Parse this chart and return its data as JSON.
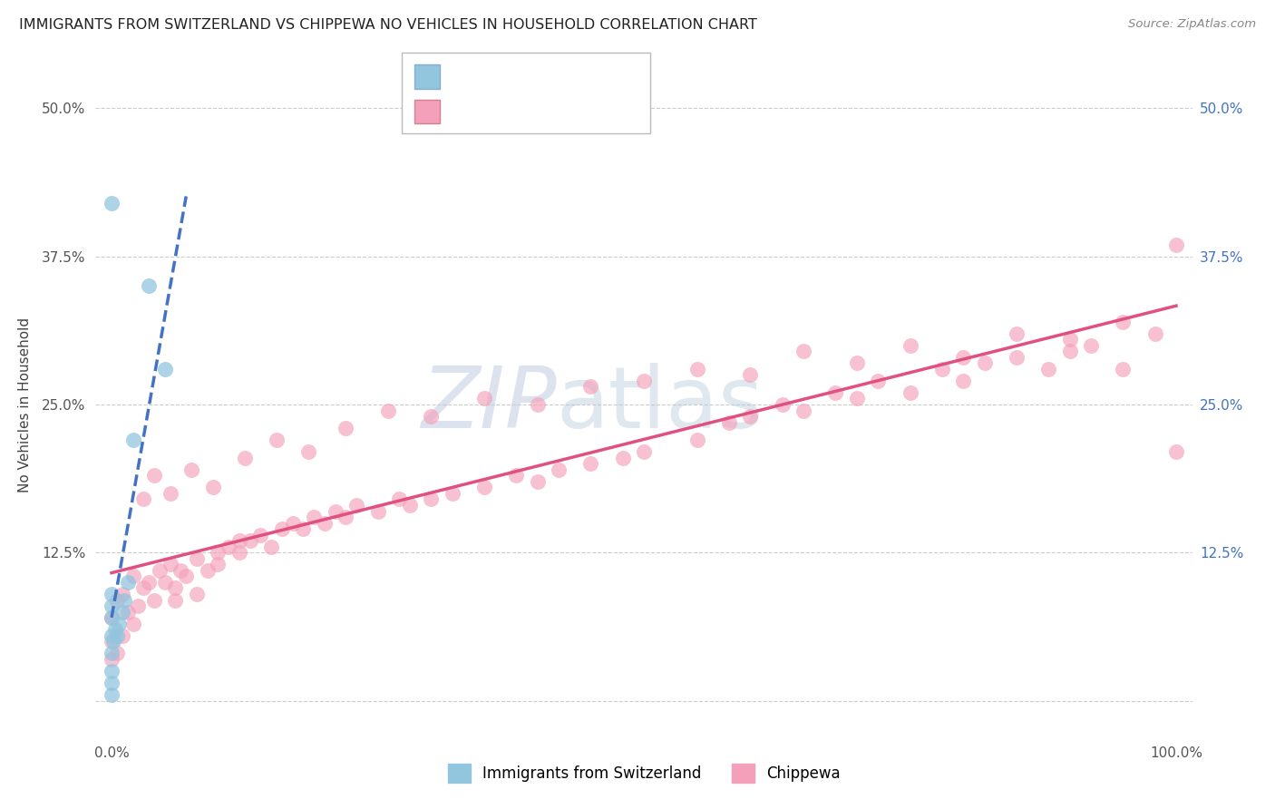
{
  "title": "IMMIGRANTS FROM SWITZERLAND VS CHIPPEWA NO VEHICLES IN HOUSEHOLD CORRELATION CHART",
  "source": "Source: ZipAtlas.com",
  "ylabel": "No Vehicles in Household",
  "watermark_zip": "ZIP",
  "watermark_atlas": "atlas",
  "color_blue": "#92C5DE",
  "color_pink": "#F4A0BA",
  "color_blue_line": "#4472C4",
  "color_pink_line": "#E05080",
  "color_blue_text": "#4472C4",
  "color_grid": "#cccccc",
  "xlim": [
    -1.5,
    101.5
  ],
  "ylim": [
    -3.0,
    53.0
  ],
  "ytick_vals": [
    0.0,
    12.5,
    25.0,
    37.5,
    50.0
  ],
  "s1_x": [
    0.0,
    0.0,
    0.0,
    0.0,
    0.0,
    0.0,
    0.0,
    0.0,
    0.2,
    0.3,
    0.5,
    0.7,
    1.0,
    1.2,
    1.5,
    2.0,
    3.5,
    5.0,
    0.0
  ],
  "s1_y": [
    0.5,
    1.5,
    2.5,
    4.0,
    5.5,
    7.0,
    8.0,
    9.0,
    5.0,
    6.0,
    5.5,
    6.5,
    7.5,
    8.5,
    10.0,
    22.0,
    35.0,
    28.0,
    42.0
  ],
  "s2_x": [
    0.0,
    0.0,
    0.0,
    0.5,
    0.5,
    1.0,
    1.0,
    1.5,
    2.0,
    2.0,
    2.5,
    3.0,
    3.5,
    4.0,
    4.5,
    5.0,
    5.5,
    6.0,
    6.5,
    7.0,
    8.0,
    9.0,
    10.0,
    11.0,
    12.0,
    13.0,
    14.0,
    15.0,
    16.0,
    17.0,
    18.0,
    19.0,
    20.0,
    21.0,
    22.0,
    23.0,
    25.0,
    27.0,
    28.0,
    30.0,
    32.0,
    35.0,
    38.0,
    40.0,
    42.0,
    45.0,
    48.0,
    50.0,
    55.0,
    58.0,
    60.0,
    63.0,
    65.0,
    68.0,
    70.0,
    72.0,
    75.0,
    78.0,
    80.0,
    82.0,
    85.0,
    88.0,
    90.0,
    92.0,
    95.0,
    98.0,
    100.0,
    3.0,
    4.0,
    5.5,
    7.5,
    9.5,
    12.5,
    15.5,
    18.5,
    22.0,
    26.0,
    30.0,
    35.0,
    40.0,
    45.0,
    50.0,
    55.0,
    60.0,
    65.0,
    70.0,
    75.0,
    80.0,
    85.0,
    90.0,
    95.0,
    100.0,
    6.0,
    8.0,
    10.0,
    12.0
  ],
  "s2_y": [
    3.5,
    5.0,
    7.0,
    4.0,
    8.5,
    5.5,
    9.0,
    7.5,
    6.5,
    10.5,
    8.0,
    9.5,
    10.0,
    8.5,
    11.0,
    10.0,
    11.5,
    9.5,
    11.0,
    10.5,
    12.0,
    11.0,
    12.5,
    13.0,
    12.5,
    13.5,
    14.0,
    13.0,
    14.5,
    15.0,
    14.5,
    15.5,
    15.0,
    16.0,
    15.5,
    16.5,
    16.0,
    17.0,
    16.5,
    17.0,
    17.5,
    18.0,
    19.0,
    18.5,
    19.5,
    20.0,
    20.5,
    21.0,
    22.0,
    23.5,
    24.0,
    25.0,
    24.5,
    26.0,
    25.5,
    27.0,
    26.0,
    28.0,
    27.0,
    28.5,
    29.0,
    28.0,
    29.5,
    30.0,
    28.0,
    31.0,
    21.0,
    17.0,
    19.0,
    17.5,
    19.5,
    18.0,
    20.5,
    22.0,
    21.0,
    23.0,
    24.5,
    24.0,
    25.5,
    25.0,
    26.5,
    27.0,
    28.0,
    27.5,
    29.5,
    28.5,
    30.0,
    29.0,
    31.0,
    30.5,
    32.0,
    38.5,
    8.5,
    9.0,
    11.5,
    13.5
  ]
}
